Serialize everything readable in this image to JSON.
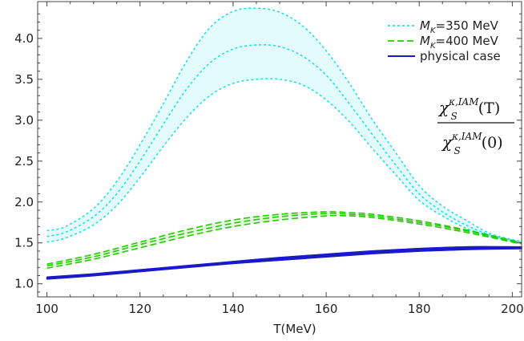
{
  "chart_data": {
    "type": "line",
    "title": "",
    "xlabel": "T(MeV)",
    "ylabel": "",
    "xlim": [
      98,
      202
    ],
    "ylim": [
      0.84,
      4.45
    ],
    "xticks": [
      "100",
      "120",
      "140",
      "160",
      "180",
      "200"
    ],
    "yticks": [
      "1.0",
      "1.5",
      "2.0",
      "2.5",
      "3.0",
      "3.5",
      "4.0"
    ],
    "annotation": {
      "num_chi": "χ",
      "num_sup": "κ,IAM",
      "num_sub": "S",
      "num_arg": "(T)",
      "den_chi": "χ",
      "den_sup": "κ,IAM",
      "den_sub": "S",
      "den_arg": "(0)"
    },
    "legend_entries": [
      {
        "m": "M",
        "sub": "K",
        "rest": "=350 MeV",
        "color": "#22e0e8",
        "dash": "3,3"
      },
      {
        "m": "M",
        "sub": "K",
        "rest": "=400 MeV",
        "color": "#22cc00",
        "dash": "8,4"
      },
      {
        "m": "",
        "sub": "",
        "rest": "physical case",
        "color": "#1a1acc",
        "dash": ""
      }
    ],
    "series": [
      {
        "group": "M_K=350 MeV",
        "band": "upper",
        "color": "#22e0e8",
        "dash": "3,3",
        "x": [
          100,
          104,
          110,
          115,
          120,
          125,
          130,
          135,
          140,
          145,
          150,
          155,
          160,
          165,
          170,
          175,
          180,
          185,
          190,
          195,
          200,
          202
        ],
        "y": [
          1.65,
          1.7,
          1.92,
          2.25,
          2.7,
          3.2,
          3.72,
          4.13,
          4.33,
          4.37,
          4.32,
          4.15,
          3.85,
          3.45,
          3.0,
          2.6,
          2.2,
          1.95,
          1.78,
          1.62,
          1.54,
          1.52
        ]
      },
      {
        "group": "M_K=350 MeV",
        "band": "middle",
        "color": "#22e0e8",
        "dash": "3,3",
        "x": [
          100,
          104,
          110,
          115,
          120,
          125,
          130,
          135,
          140,
          145,
          150,
          155,
          160,
          165,
          170,
          175,
          180,
          185,
          190,
          195,
          200,
          202
        ],
        "y": [
          1.58,
          1.63,
          1.82,
          2.1,
          2.5,
          2.95,
          3.38,
          3.7,
          3.87,
          3.92,
          3.9,
          3.78,
          3.55,
          3.2,
          2.82,
          2.45,
          2.1,
          1.88,
          1.72,
          1.6,
          1.53,
          1.51
        ]
      },
      {
        "group": "M_K=350 MeV",
        "band": "lower",
        "color": "#22e0e8",
        "dash": "3,3",
        "x": [
          100,
          104,
          110,
          115,
          120,
          125,
          130,
          135,
          140,
          145,
          150,
          155,
          160,
          165,
          170,
          175,
          180,
          185,
          190,
          195,
          200,
          202
        ],
        "y": [
          1.51,
          1.56,
          1.72,
          1.96,
          2.3,
          2.68,
          3.03,
          3.3,
          3.45,
          3.5,
          3.5,
          3.43,
          3.25,
          2.98,
          2.65,
          2.33,
          2.02,
          1.83,
          1.68,
          1.58,
          1.52,
          1.5
        ]
      },
      {
        "group": "M_K=400 MeV",
        "band": "upper",
        "color": "#22cc00",
        "dash": "8,4",
        "x": [
          100,
          110,
          120,
          130,
          140,
          150,
          160,
          165,
          170,
          180,
          190,
          200,
          202
        ],
        "y": [
          1.24,
          1.36,
          1.51,
          1.66,
          1.78,
          1.85,
          1.88,
          1.87,
          1.85,
          1.77,
          1.66,
          1.53,
          1.5
        ]
      },
      {
        "group": "M_K=400 MeV",
        "band": "middle",
        "color": "#22cc00",
        "dash": "8,4",
        "x": [
          100,
          110,
          120,
          130,
          140,
          150,
          160,
          165,
          170,
          180,
          190,
          200,
          202
        ],
        "y": [
          1.22,
          1.33,
          1.48,
          1.62,
          1.74,
          1.82,
          1.86,
          1.85,
          1.83,
          1.75,
          1.65,
          1.52,
          1.5
        ]
      },
      {
        "group": "M_K=400 MeV",
        "band": "lower",
        "color": "#22cc00",
        "dash": "8,4",
        "x": [
          100,
          110,
          120,
          130,
          140,
          150,
          160,
          165,
          170,
          180,
          190,
          200,
          202
        ],
        "y": [
          1.19,
          1.3,
          1.44,
          1.58,
          1.7,
          1.78,
          1.83,
          1.83,
          1.81,
          1.73,
          1.63,
          1.51,
          1.49
        ]
      },
      {
        "group": "physical case",
        "band": "upper",
        "color": "#1a1acc",
        "dash": "",
        "x": [
          100,
          110,
          120,
          130,
          140,
          150,
          160,
          170,
          180,
          190,
          200,
          202
        ],
        "y": [
          1.08,
          1.12,
          1.17,
          1.22,
          1.27,
          1.32,
          1.36,
          1.4,
          1.43,
          1.45,
          1.45,
          1.45
        ]
      },
      {
        "group": "physical case",
        "band": "lower",
        "color": "#1a1acc",
        "dash": "",
        "x": [
          100,
          110,
          120,
          130,
          140,
          150,
          160,
          170,
          180,
          190,
          200,
          202
        ],
        "y": [
          1.06,
          1.1,
          1.15,
          1.2,
          1.25,
          1.29,
          1.33,
          1.37,
          1.4,
          1.42,
          1.43,
          1.43
        ]
      }
    ]
  }
}
